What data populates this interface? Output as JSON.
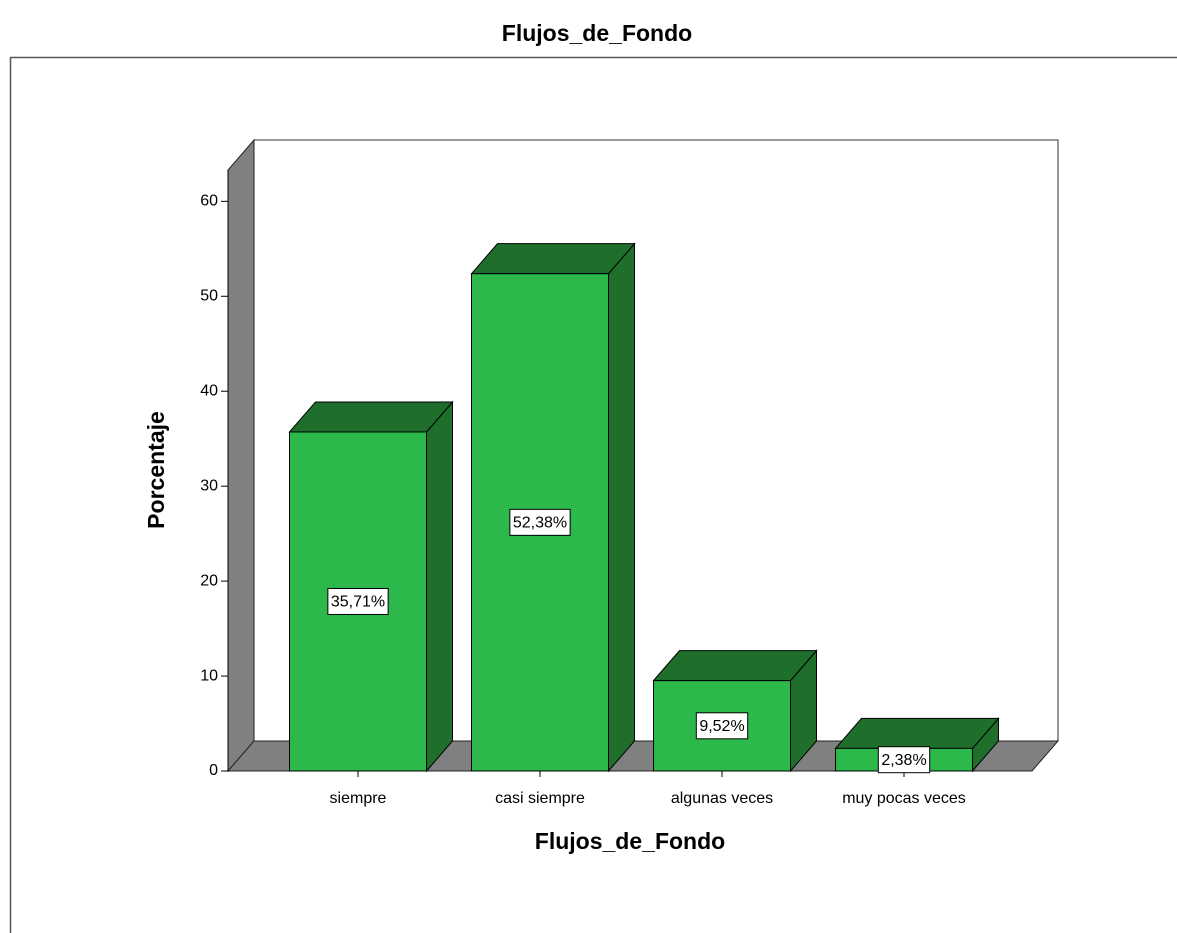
{
  "chart_data": {
    "type": "bar3d",
    "title": "Flujos_de_Fondo",
    "x_label": "Flujos_de_Fondo",
    "y_label": "Porcentaje",
    "categories": [
      "siempre",
      "casi siempre",
      "algunas veces",
      "muy pocas veces"
    ],
    "values": [
      35.71,
      52.38,
      9.52,
      2.38
    ],
    "value_labels": [
      "35,71%",
      "52,38%",
      "9,52%",
      "2,38%"
    ],
    "color": "#2db84b",
    "ylim": [
      0,
      63.3
    ],
    "yticks": [
      0,
      10,
      20,
      30,
      40,
      50,
      60
    ]
  }
}
